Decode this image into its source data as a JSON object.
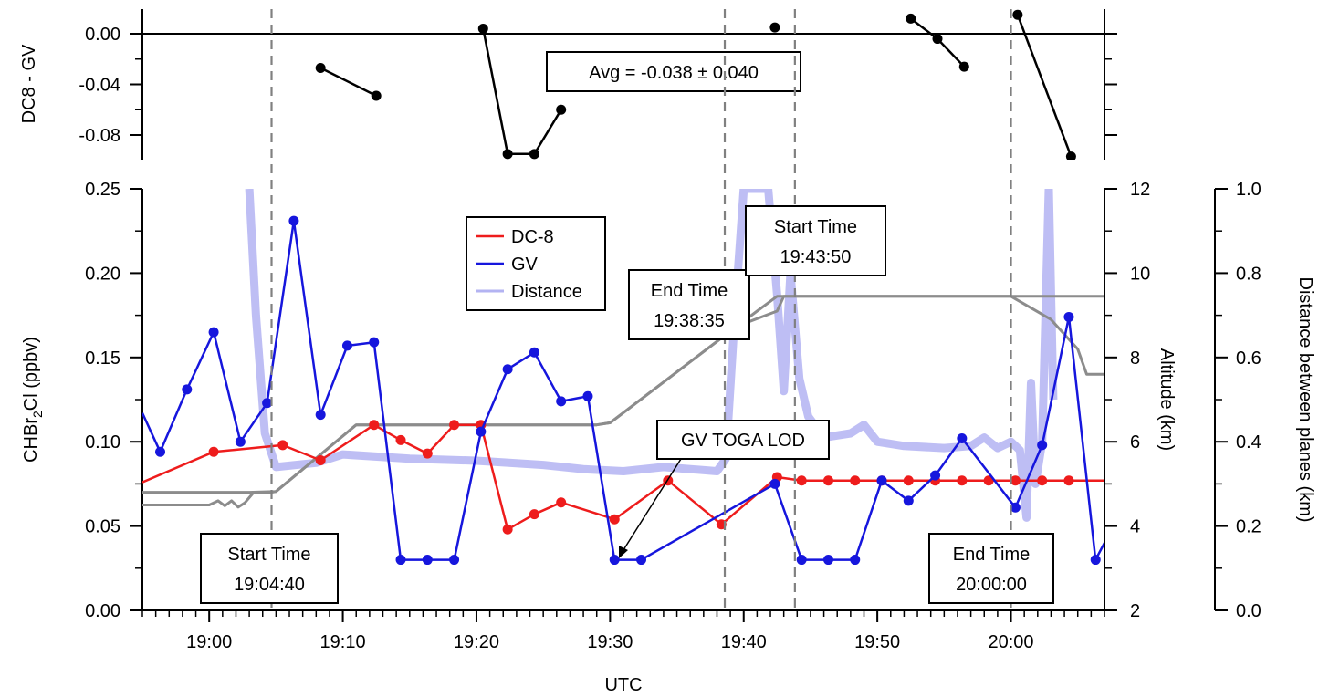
{
  "chart_data": {
    "type": "line",
    "x_axis": {
      "label": "UTC",
      "range": [
        "18:55",
        "20:07"
      ],
      "ticks": [
        "19:00",
        "19:10",
        "19:20",
        "19:30",
        "19:40",
        "19:50",
        "20:00"
      ]
    },
    "top_panel": {
      "ylabel": "DC8 - GV",
      "ylim": [
        -0.1,
        0.02
      ],
      "ticks": [
        "0.00",
        "-0.04",
        "-0.08"
      ],
      "zero_line": true,
      "annotation": "Avg = -0.038 ± 0.040",
      "segments": [
        [
          {
            "t": "19:08:20",
            "v": -0.027
          },
          {
            "t": "19:12:30",
            "v": -0.049
          }
        ],
        [
          {
            "t": "19:20:30",
            "v": 0.004
          },
          {
            "t": "19:22:20",
            "v": -0.095
          },
          {
            "t": "19:24:20",
            "v": -0.095
          },
          {
            "t": "19:26:20",
            "v": -0.06
          }
        ],
        [
          {
            "t": "19:42:20",
            "v": 0.005
          }
        ],
        [
          {
            "t": "19:52:30",
            "v": 0.012
          },
          {
            "t": "19:54:30",
            "v": -0.004
          },
          {
            "t": "19:56:30",
            "v": -0.026
          }
        ],
        [
          {
            "t": "20:00:30",
            "v": 0.015
          },
          {
            "t": "20:04:30",
            "v": -0.097
          }
        ]
      ]
    },
    "main_panel": {
      "ylabel_left": "CHBr₂Cl (ppbv)",
      "ylim_left": [
        0,
        0.25
      ],
      "ticks_left": [
        "0.00",
        "0.05",
        "0.10",
        "0.15",
        "0.20",
        "0.25"
      ],
      "ylabel_right": "Altitude (km)",
      "ylim_right": [
        2,
        12
      ],
      "ticks_right": [
        "2",
        "4",
        "6",
        "8",
        "10",
        "12"
      ],
      "ylabel_far_right": "Distance between planes (km)",
      "ylim_far_right": [
        0,
        1
      ],
      "ticks_far_right": [
        "0.0",
        "0.2",
        "0.4",
        "0.6",
        "0.8",
        "1.0"
      ],
      "legend": [
        "DC-8",
        "GV",
        "Distance"
      ],
      "series": [
        {
          "name": "DC-8",
          "color": "#ee1c1c",
          "axis": "left",
          "markers": true,
          "line_start": {
            "t": "18:55:00",
            "v": 0.076
          },
          "points": [
            {
              "t": "19:00:20",
              "v": 0.094
            },
            {
              "t": "19:05:30",
              "v": 0.098
            },
            {
              "t": "19:08:20",
              "v": 0.089
            },
            {
              "t": "19:12:20",
              "v": 0.11
            },
            {
              "t": "19:14:20",
              "v": 0.101
            },
            {
              "t": "19:16:20",
              "v": 0.093
            },
            {
              "t": "19:18:20",
              "v": 0.11
            },
            {
              "t": "19:20:20",
              "v": 0.11
            },
            {
              "t": "19:22:20",
              "v": 0.048
            },
            {
              "t": "19:24:20",
              "v": 0.057
            },
            {
              "t": "19:26:20",
              "v": 0.064
            },
            {
              "t": "19:30:20",
              "v": 0.054
            },
            {
              "t": "19:34:20",
              "v": 0.077
            },
            {
              "t": "19:38:20",
              "v": 0.051
            },
            {
              "t": "19:42:30",
              "v": 0.079
            },
            {
              "t": "19:44:20",
              "v": 0.077
            },
            {
              "t": "19:46:20",
              "v": 0.077
            },
            {
              "t": "19:48:20",
              "v": 0.077
            },
            {
              "t": "19:50:20",
              "v": 0.077
            },
            {
              "t": "19:52:20",
              "v": 0.077
            },
            {
              "t": "19:54:20",
              "v": 0.077
            },
            {
              "t": "19:56:20",
              "v": 0.077
            },
            {
              "t": "19:58:20",
              "v": 0.077
            },
            {
              "t": "20:00:20",
              "v": 0.077
            },
            {
              "t": "20:02:20",
              "v": 0.077
            },
            {
              "t": "20:04:20",
              "v": 0.077
            }
          ],
          "line_end": {
            "t": "20:07:00",
            "v": 0.077
          }
        },
        {
          "name": "GV",
          "color": "#1616dd",
          "axis": "left",
          "markers": true,
          "line_start": {
            "t": "18:55:00",
            "v": 0.117
          },
          "points": [
            {
              "t": "18:56:20",
              "v": 0.094
            },
            {
              "t": "18:58:20",
              "v": 0.131
            },
            {
              "t": "19:00:20",
              "v": 0.165
            },
            {
              "t": "19:02:20",
              "v": 0.1
            },
            {
              "t": "19:04:20",
              "v": 0.123
            },
            {
              "t": "19:06:20",
              "v": 0.231
            },
            {
              "t": "19:08:20",
              "v": 0.116
            },
            {
              "t": "19:10:20",
              "v": 0.157
            },
            {
              "t": "19:12:20",
              "v": 0.159
            },
            {
              "t": "19:14:20",
              "v": 0.03
            },
            {
              "t": "19:16:20",
              "v": 0.03
            },
            {
              "t": "19:18:20",
              "v": 0.03
            },
            {
              "t": "19:20:20",
              "v": 0.106
            },
            {
              "t": "19:22:20",
              "v": 0.143
            },
            {
              "t": "19:24:20",
              "v": 0.153
            },
            {
              "t": "19:26:20",
              "v": 0.124
            },
            {
              "t": "19:28:20",
              "v": 0.127
            },
            {
              "t": "19:30:20",
              "v": 0.03
            },
            {
              "t": "19:32:20",
              "v": 0.03
            },
            {
              "t": "19:42:20",
              "v": 0.075
            },
            {
              "t": "19:44:20",
              "v": 0.03
            },
            {
              "t": "19:46:20",
              "v": 0.03
            },
            {
              "t": "19:48:20",
              "v": 0.03
            },
            {
              "t": "19:50:20",
              "v": 0.077
            },
            {
              "t": "19:52:20",
              "v": 0.065
            },
            {
              "t": "19:54:20",
              "v": 0.08
            },
            {
              "t": "19:56:20",
              "v": 0.102
            },
            {
              "t": "20:00:20",
              "v": 0.061
            },
            {
              "t": "20:02:20",
              "v": 0.098
            },
            {
              "t": "20:04:20",
              "v": 0.174
            },
            {
              "t": "20:06:20",
              "v": 0.03
            }
          ],
          "line_end": {
            "t": "20:07:00",
            "v": 0.04
          }
        },
        {
          "name": "DC-8 altitude",
          "color": "#8c8c8c",
          "axis": "right",
          "points": [
            {
              "t": "18:55:00",
              "v": 4.8
            },
            {
              "t": "19:03:00",
              "v": 4.8
            },
            {
              "t": "19:05:00",
              "v": 4.82
            },
            {
              "t": "19:11:00",
              "v": 6.4
            },
            {
              "t": "19:29:00",
              "v": 6.4
            },
            {
              "t": "19:30:00",
              "v": 6.45
            },
            {
              "t": "19:38:30",
              "v": 8.5
            },
            {
              "t": "19:41:00",
              "v": 9.1
            },
            {
              "t": "19:42:30",
              "v": 9.45
            },
            {
              "t": "19:45:00",
              "v": 9.45
            },
            {
              "t": "20:00:00",
              "v": 9.45
            },
            {
              "t": "20:07:00",
              "v": 9.45
            }
          ]
        },
        {
          "name": "GV altitude",
          "color": "#8c8c8c",
          "axis": "right",
          "points": [
            {
              "t": "18:55:00",
              "v": 4.5
            },
            {
              "t": "19:00:00",
              "v": 4.5
            },
            {
              "t": "19:00:40",
              "v": 4.6
            },
            {
              "t": "19:01:10",
              "v": 4.48
            },
            {
              "t": "19:01:40",
              "v": 4.6
            },
            {
              "t": "19:02:10",
              "v": 4.45
            },
            {
              "t": "19:02:40",
              "v": 4.55
            },
            {
              "t": "19:03:20",
              "v": 4.8
            },
            {
              "t": "19:04:40",
              "v": 4.8
            },
            {
              "t": "19:05:00",
              "v": 4.82
            },
            {
              "t": "19:11:00",
              "v": 6.4
            },
            {
              "t": "19:29:00",
              "v": 6.4
            },
            {
              "t": "19:30:00",
              "v": 6.45
            },
            {
              "t": "19:38:30",
              "v": 8.5
            },
            {
              "t": "19:40:00",
              "v": 8.8
            },
            {
              "t": "19:42:30",
              "v": 9.1
            },
            {
              "t": "19:43:00",
              "v": 9.45
            },
            {
              "t": "20:00:00",
              "v": 9.45
            },
            {
              "t": "20:03:00",
              "v": 8.9
            },
            {
              "t": "20:05:00",
              "v": 8.2
            },
            {
              "t": "20:05:40",
              "v": 7.6
            },
            {
              "t": "20:07:00",
              "v": 7.6
            }
          ]
        },
        {
          "name": "Distance",
          "color": "#b3b3f2",
          "axis": "far_right",
          "points": [
            {
              "t": "19:03:00",
              "v": 1.0
            },
            {
              "t": "19:03:30",
              "v": 0.7
            },
            {
              "t": "19:04:10",
              "v": 0.42
            },
            {
              "t": "19:05:00",
              "v": 0.34
            },
            {
              "t": "19:08:00",
              "v": 0.35
            },
            {
              "t": "19:10:00",
              "v": 0.37
            },
            {
              "t": "19:15:00",
              "v": 0.36
            },
            {
              "t": "19:20:00",
              "v": 0.355
            },
            {
              "t": "19:25:00",
              "v": 0.345
            },
            {
              "t": "19:28:00",
              "v": 0.335
            },
            {
              "t": "19:31:00",
              "v": 0.33
            },
            {
              "t": "19:34:00",
              "v": 0.34
            },
            {
              "t": "19:38:00",
              "v": 0.33
            },
            {
              "t": "19:38:40",
              "v": 0.36
            },
            {
              "t": "19:39:20",
              "v": 0.7
            },
            {
              "t": "19:40:00",
              "v": 1.0
            },
            {
              "t": "19:41:50",
              "v": 1.0
            },
            {
              "t": "19:42:30",
              "v": 0.75
            },
            {
              "t": "19:43:00",
              "v": 0.52
            },
            {
              "t": "19:43:30",
              "v": 0.8
            },
            {
              "t": "19:44:10",
              "v": 0.55
            },
            {
              "t": "19:44:50",
              "v": 0.46
            },
            {
              "t": "19:46:00",
              "v": 0.41
            },
            {
              "t": "19:48:00",
              "v": 0.42
            },
            {
              "t": "19:49:00",
              "v": 0.44
            },
            {
              "t": "19:50:00",
              "v": 0.4
            },
            {
              "t": "19:52:00",
              "v": 0.39
            },
            {
              "t": "19:55:00",
              "v": 0.385
            },
            {
              "t": "19:57:00",
              "v": 0.39
            },
            {
              "t": "19:58:00",
              "v": 0.41
            },
            {
              "t": "19:59:00",
              "v": 0.385
            },
            {
              "t": "20:00:00",
              "v": 0.4
            },
            {
              "t": "20:00:40",
              "v": 0.38
            },
            {
              "t": "20:01:10",
              "v": 0.22
            },
            {
              "t": "20:01:30",
              "v": 0.54
            },
            {
              "t": "20:01:50",
              "v": 0.3
            },
            {
              "t": "20:02:20",
              "v": 0.4
            },
            {
              "t": "20:02:50",
              "v": 1.0
            },
            {
              "t": "20:03:10",
              "v": 0.5
            }
          ]
        }
      ]
    },
    "time_markers": [
      {
        "t": "19:04:40",
        "label": "Start Time",
        "time": "19:04:40"
      },
      {
        "t": "19:38:35",
        "label": "End Time",
        "time": "19:38:35"
      },
      {
        "t": "19:43:50",
        "label": "Start Time",
        "time": "19:43:50"
      },
      {
        "t": "20:00:00",
        "label": "End Time",
        "time": "20:00:00"
      }
    ],
    "annotations": {
      "lod": "GV TOGA LOD"
    }
  }
}
